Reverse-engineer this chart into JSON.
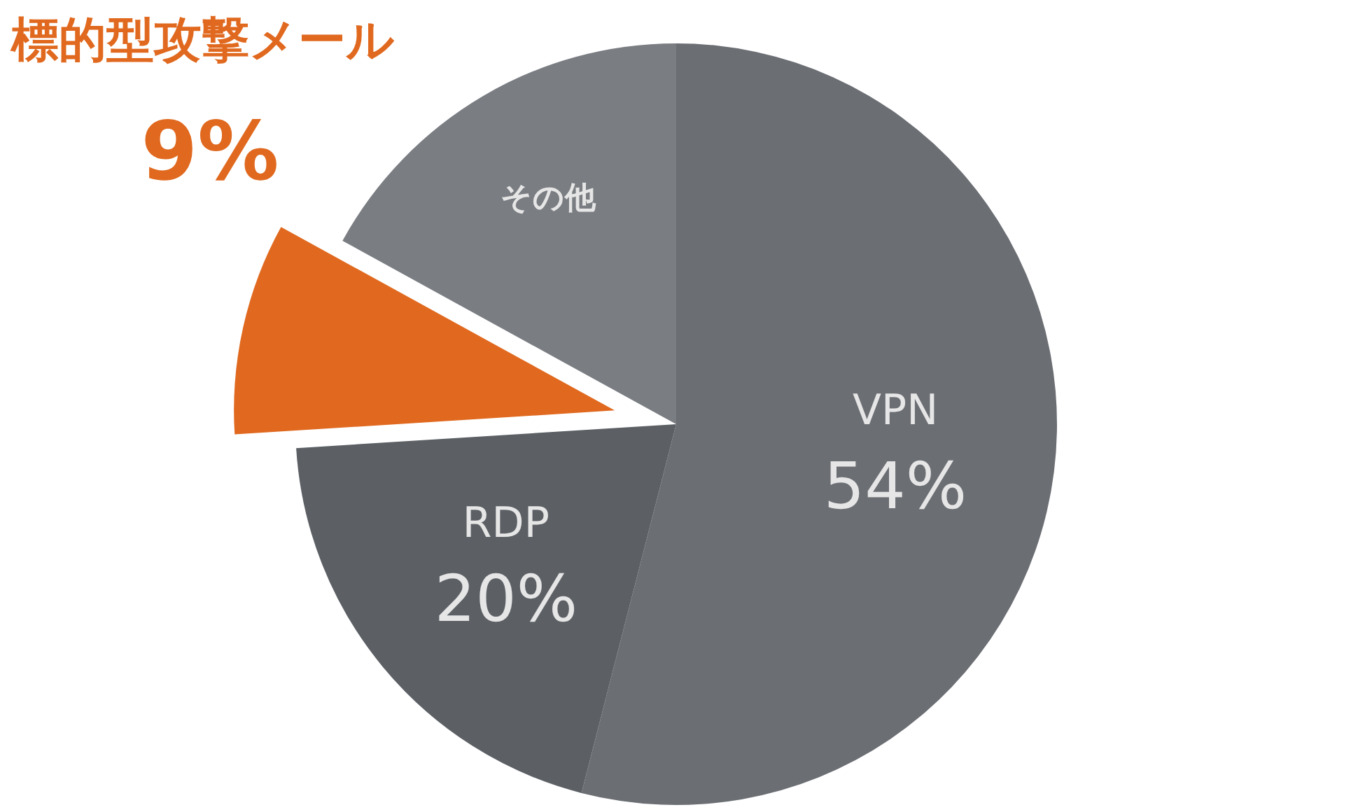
{
  "chart_data": {
    "type": "pie",
    "categories": [
      "VPN",
      "RDP",
      "標的型攻撃メール",
      "その他"
    ],
    "values": [
      54,
      20,
      9,
      17
    ],
    "value_labels": [
      "54%",
      "20%",
      "9%",
      null
    ],
    "colors": [
      "#6b6e73",
      "#5c6065",
      "#e0691f",
      "#7a7d82"
    ]
  }
}
